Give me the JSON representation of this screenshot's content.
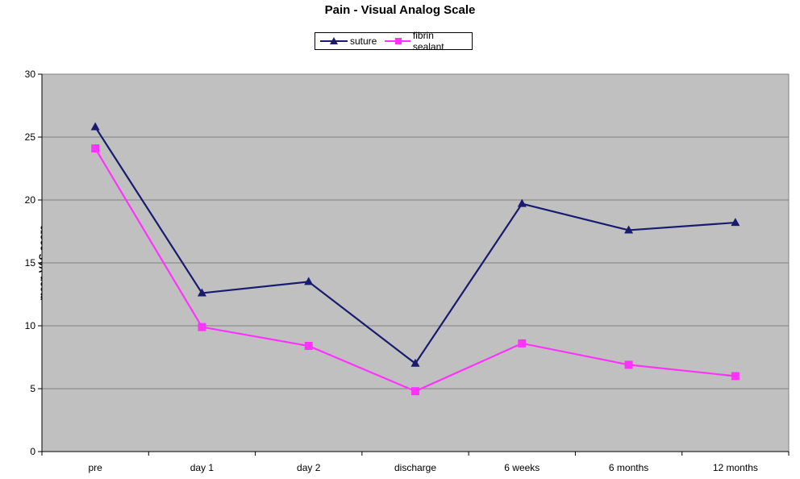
{
  "chart_data": {
    "type": "line",
    "title": "Pain - Visual Analog Scale",
    "xlabel": "",
    "ylabel": "mean VAS score",
    "categories": [
      "pre",
      "day 1",
      "day 2",
      "discharge",
      "6 weeks",
      "6 months",
      "12 months"
    ],
    "ylim": [
      0,
      30
    ],
    "yticks": [
      0,
      5,
      10,
      15,
      20,
      25,
      30
    ],
    "grid": true,
    "legend_position": "top-center",
    "series": [
      {
        "name": "suture",
        "color": "#1a1a6e",
        "marker": "triangle",
        "values": [
          25.8,
          12.6,
          13.5,
          7.0,
          19.7,
          17.6,
          18.2
        ]
      },
      {
        "name": "fibrin sealant",
        "color": "#ff33ff",
        "marker": "square",
        "values": [
          24.1,
          9.9,
          8.4,
          4.8,
          8.6,
          6.9,
          6.0
        ]
      }
    ],
    "plot_background": "#c0c0c0"
  }
}
